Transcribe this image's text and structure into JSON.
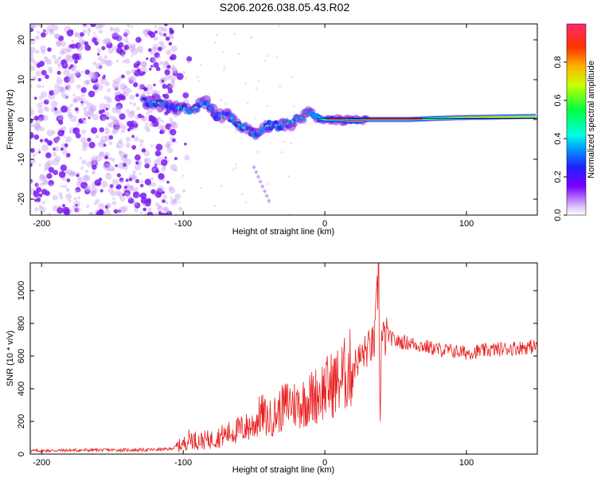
{
  "title": "S206.2026.038.05.43.R02",
  "colors": {
    "snr_line": "#e8201f",
    "bg": "#ffffff",
    "axis": "#000000"
  },
  "chart_data": [
    {
      "type": "heatmap",
      "name": "spectrogram",
      "xlabel": "Height of straight line (km)",
      "ylabel": "Frequency (Hz)",
      "xlim": [
        -208,
        150
      ],
      "ylim": [
        -24,
        24
      ],
      "xticks": [
        -200,
        -100,
        0,
        100
      ],
      "yticks": [
        20,
        10,
        0,
        -10,
        -20
      ],
      "noise_region_x": [
        -208,
        -105
      ],
      "ridge": [
        [
          -128,
          4.5
        ],
        [
          -120,
          4.5
        ],
        [
          -110,
          3.2
        ],
        [
          -100,
          2.7
        ],
        [
          -92,
          2.8
        ],
        [
          -85,
          4.5
        ],
        [
          -80,
          2.5
        ],
        [
          -75,
          0.5
        ],
        [
          -70,
          1.5
        ],
        [
          -65,
          0
        ],
        [
          -60,
          -1.5
        ],
        [
          -55,
          -2.5
        ],
        [
          -50,
          -3.5
        ],
        [
          -45,
          -2.5
        ],
        [
          -40,
          -1.5
        ],
        [
          -35,
          -1.5
        ],
        [
          -30,
          -1.3
        ],
        [
          -25,
          -1
        ],
        [
          -20,
          0
        ],
        [
          -15,
          0.5
        ],
        [
          -12,
          2.5
        ],
        [
          -8,
          1
        ],
        [
          -5,
          0.5
        ],
        [
          0,
          0
        ],
        [
          10,
          0
        ],
        [
          20,
          -0.3
        ],
        [
          25,
          -0.3
        ],
        [
          30,
          0
        ],
        [
          40,
          0
        ],
        [
          60,
          0
        ],
        [
          80,
          0.3
        ],
        [
          100,
          0.5
        ],
        [
          120,
          0.6
        ],
        [
          150,
          0.8
        ]
      ],
      "colorbar": {
        "label": "Normalized spectral amplitude",
        "range": [
          0,
          1
        ],
        "ticks": [
          "0.0",
          "0.2",
          "0.4",
          "0.6",
          "0.8"
        ],
        "tick_values": [
          0,
          0.2,
          0.4,
          0.6,
          0.8
        ]
      }
    },
    {
      "type": "line",
      "name": "snr",
      "xlabel": "Height of straight line (km)",
      "ylabel": "SNR (10 * v/v)",
      "xlim": [
        -208,
        150
      ],
      "ylim": [
        0,
        1170
      ],
      "xticks": [
        -200,
        -100,
        0,
        100
      ],
      "yticks": [
        0,
        200,
        400,
        600,
        800,
        1000
      ],
      "series": [
        {
          "name": "SNR",
          "x": [
            -208,
            -160,
            -130,
            -110,
            -100,
            -95,
            -90,
            -80,
            -70,
            -60,
            -50,
            -45,
            -40,
            -35,
            -30,
            -25,
            -20,
            -10,
            0,
            10,
            20,
            30,
            35,
            37,
            38,
            39,
            40,
            45,
            50,
            60,
            80,
            100,
            120,
            150
          ],
          "y": [
            20,
            25,
            25,
            30,
            60,
            100,
            80,
            90,
            120,
            150,
            180,
            250,
            210,
            240,
            280,
            320,
            300,
            340,
            400,
            450,
            540,
            640,
            680,
            950,
            1170,
            180,
            700,
            720,
            690,
            680,
            640,
            620,
            640,
            660
          ]
        }
      ]
    }
  ]
}
